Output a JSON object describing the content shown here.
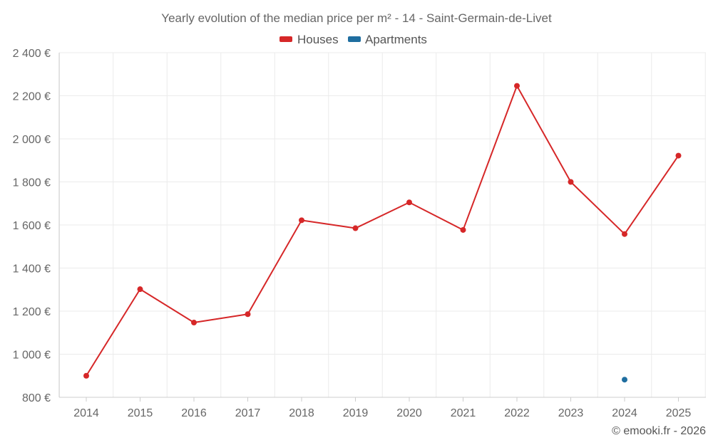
{
  "chart_data": {
    "type": "line",
    "title": "Yearly evolution of the median price per m² - 14 - Saint-Germain-de-Livet",
    "categories": [
      "2014",
      "2015",
      "2016",
      "2017",
      "2018",
      "2019",
      "2020",
      "2021",
      "2022",
      "2023",
      "2024",
      "2025"
    ],
    "ylim": [
      800,
      2400
    ],
    "yticks": [
      {
        "value": 800,
        "label": "800 €"
      },
      {
        "value": 1000,
        "label": "1 000 €"
      },
      {
        "value": 1200,
        "label": "1 200 €"
      },
      {
        "value": 1400,
        "label": "1 400 €"
      },
      {
        "value": 1600,
        "label": "1 600 €"
      },
      {
        "value": 1800,
        "label": "1 800 €"
      },
      {
        "value": 2000,
        "label": "2 000 €"
      },
      {
        "value": 2200,
        "label": "2 200 €"
      },
      {
        "value": 2400,
        "label": "2 400 €"
      }
    ],
    "grid": true,
    "legend_position": "top-center",
    "series": [
      {
        "name": "Houses",
        "color": "#d62728",
        "values": [
          900,
          1302,
          1147,
          1186,
          1622,
          1585,
          1705,
          1577,
          2246,
          1800,
          1558,
          1922
        ]
      },
      {
        "name": "Apartments",
        "color": "#1f6ea0",
        "values": [
          null,
          null,
          null,
          null,
          null,
          null,
          null,
          null,
          null,
          null,
          882,
          null
        ]
      }
    ]
  },
  "credit": "© emooki.fr - 2026"
}
